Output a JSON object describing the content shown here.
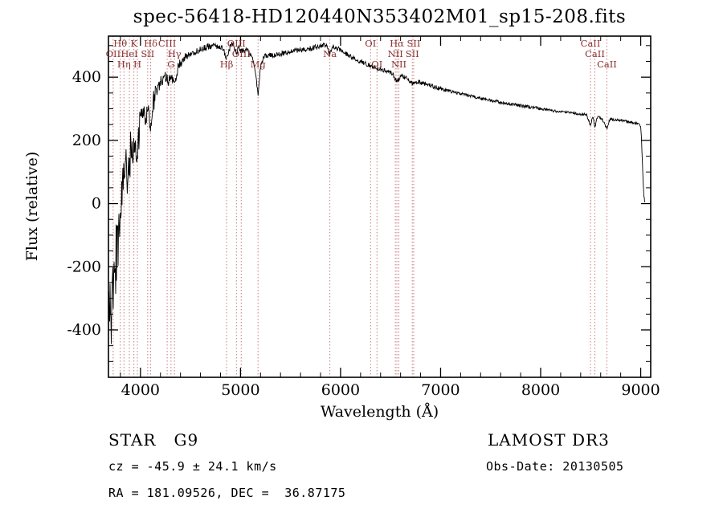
{
  "chart_data": {
    "type": "line",
    "title": "spec-56418-HD120440N353402M01_sp15-208.fits",
    "xlabel": "Wavelength (Å)",
    "ylabel": "Flux (relative)",
    "xlim": [
      3680,
      9100
    ],
    "ylim": [
      -550,
      530
    ],
    "xticks": [
      4000,
      5000,
      6000,
      7000,
      8000,
      9000
    ],
    "yticks": [
      -400,
      -200,
      0,
      200,
      400
    ],
    "x_minor_step": 200,
    "y_minor_step": 50,
    "grid": false,
    "legend": "none",
    "marker_color": "#c97b7b",
    "label_color": "#8b3030",
    "series": [
      {
        "name": "spectrum",
        "color": "#000000",
        "points": [
          [
            3680,
            -420
          ],
          [
            3695,
            -320
          ],
          [
            3710,
            -370
          ],
          [
            3725,
            -250
          ],
          [
            3740,
            -280
          ],
          [
            3755,
            -160
          ],
          [
            3770,
            -120
          ],
          [
            3785,
            -60
          ],
          [
            3800,
            -15
          ],
          [
            3820,
            30
          ],
          [
            3840,
            70
          ],
          [
            3860,
            105
          ],
          [
            3880,
            130
          ],
          [
            3900,
            155
          ],
          [
            3920,
            170
          ],
          [
            3934,
            150
          ],
          [
            3950,
            195
          ],
          [
            3969,
            175
          ],
          [
            3990,
            240
          ],
          [
            4010,
            268
          ],
          [
            4040,
            292
          ],
          [
            4072,
            278
          ],
          [
            4100,
            262
          ],
          [
            4130,
            330
          ],
          [
            4160,
            352
          ],
          [
            4200,
            382
          ],
          [
            4240,
            398
          ],
          [
            4267,
            386
          ],
          [
            4300,
            404
          ],
          [
            4340,
            374
          ],
          [
            4380,
            438
          ],
          [
            4420,
            452
          ],
          [
            4470,
            468
          ],
          [
            4520,
            474
          ],
          [
            4570,
            484
          ],
          [
            4620,
            490
          ],
          [
            4670,
            497
          ],
          [
            4720,
            500
          ],
          [
            4770,
            497
          ],
          [
            4820,
            491
          ],
          [
            4861,
            458
          ],
          [
            4900,
            499
          ],
          [
            4930,
            503
          ],
          [
            4959,
            478
          ],
          [
            4985,
            496
          ],
          [
            5007,
            482
          ],
          [
            5060,
            488
          ],
          [
            5110,
            468
          ],
          [
            5150,
            418
          ],
          [
            5175,
            340
          ],
          [
            5200,
            438
          ],
          [
            5240,
            468
          ],
          [
            5290,
            471
          ],
          [
            5340,
            469
          ],
          [
            5400,
            474
          ],
          [
            5460,
            479
          ],
          [
            5520,
            483
          ],
          [
            5580,
            485
          ],
          [
            5640,
            487
          ],
          [
            5700,
            491
          ],
          [
            5760,
            496
          ],
          [
            5820,
            502
          ],
          [
            5860,
            505
          ],
          [
            5893,
            470
          ],
          [
            5920,
            499
          ],
          [
            5960,
            493
          ],
          [
            6000,
            485
          ],
          [
            6050,
            475
          ],
          [
            6100,
            465
          ],
          [
            6160,
            455
          ],
          [
            6220,
            447
          ],
          [
            6280,
            439
          ],
          [
            6340,
            431
          ],
          [
            6400,
            425
          ],
          [
            6460,
            419
          ],
          [
            6520,
            411
          ],
          [
            6563,
            386
          ],
          [
            6610,
            403
          ],
          [
            6660,
            397
          ],
          [
            6717,
            381
          ],
          [
            6731,
            379
          ],
          [
            6780,
            385
          ],
          [
            6840,
            379
          ],
          [
            6900,
            373
          ],
          [
            6960,
            367
          ],
          [
            7020,
            361
          ],
          [
            7100,
            355
          ],
          [
            7180,
            349
          ],
          [
            7260,
            343
          ],
          [
            7340,
            337
          ],
          [
            7420,
            332
          ],
          [
            7500,
            327
          ],
          [
            7580,
            322
          ],
          [
            7660,
            317
          ],
          [
            7740,
            313
          ],
          [
            7820,
            309
          ],
          [
            7900,
            305
          ],
          [
            7980,
            301
          ],
          [
            8060,
            297
          ],
          [
            8140,
            293
          ],
          [
            8220,
            290
          ],
          [
            8300,
            287
          ],
          [
            8380,
            284
          ],
          [
            8460,
            281
          ],
          [
            8498,
            247
          ],
          [
            8520,
            277
          ],
          [
            8542,
            241
          ],
          [
            8565,
            274
          ],
          [
            8610,
            271
          ],
          [
            8662,
            237
          ],
          [
            8690,
            267
          ],
          [
            8740,
            265
          ],
          [
            8790,
            263
          ],
          [
            8840,
            261
          ],
          [
            8890,
            258
          ],
          [
            8930,
            256
          ],
          [
            8960,
            253
          ],
          [
            8985,
            249
          ],
          [
            9000,
            243
          ],
          [
            9008,
            205
          ],
          [
            9016,
            140
          ],
          [
            9024,
            70
          ],
          [
            9032,
            25
          ],
          [
            9040,
            8
          ]
        ]
      }
    ],
    "noise": [
      {
        "upto": 3780,
        "amp": 120
      },
      {
        "upto": 3900,
        "amp": 85
      },
      {
        "upto": 4000,
        "amp": 55
      },
      {
        "upto": 4150,
        "amp": 38
      },
      {
        "upto": 4300,
        "amp": 24
      },
      {
        "upto": 4500,
        "amp": 15
      },
      {
        "upto": 5000,
        "amp": 10
      },
      {
        "upto": 6000,
        "amp": 8
      },
      {
        "upto": 7000,
        "amp": 7
      },
      {
        "upto": 8000,
        "amp": 5
      },
      {
        "upto": 9100,
        "amp": 4
      }
    ],
    "spectral_lines": [
      {
        "label": "OII",
        "wavelength": 3727,
        "row": 1
      },
      {
        "label": "Hθ",
        "wavelength": 3798,
        "row": 0
      },
      {
        "label": "Hη",
        "wavelength": 3835,
        "row": 2
      },
      {
        "label": "HeI",
        "wavelength": 3889,
        "row": 1
      },
      {
        "label": "K",
        "wavelength": 3934,
        "row": 0
      },
      {
        "label": "H",
        "wavelength": 3969,
        "row": 2
      },
      {
        "label": "SII",
        "wavelength": 4072,
        "row": 1
      },
      {
        "label": "Hδ",
        "wavelength": 4102,
        "row": 0
      },
      {
        "label": "CIII",
        "wavelength": 4267,
        "row": 0
      },
      {
        "label": "G",
        "wavelength": 4305,
        "row": 2
      },
      {
        "label": "Hγ",
        "wavelength": 4340,
        "row": 1
      },
      {
        "label": "Hβ",
        "wavelength": 4861,
        "row": 2
      },
      {
        "label": "OIII",
        "wavelength": 4959,
        "row": 0
      },
      {
        "label": "OIII",
        "wavelength": 5007,
        "row": 1
      },
      {
        "label": "Mg",
        "wavelength": 5175,
        "row": 2
      },
      {
        "label": "Na",
        "wavelength": 5893,
        "row": 1
      },
      {
        "label": "OI",
        "wavelength": 6300,
        "row": 0
      },
      {
        "label": "OI",
        "wavelength": 6364,
        "row": 2
      },
      {
        "label": "NII",
        "wavelength": 6548,
        "row": 1
      },
      {
        "label": "Hα",
        "wavelength": 6563,
        "row": 0
      },
      {
        "label": "NII",
        "wavelength": 6583,
        "row": 2
      },
      {
        "label": "SII",
        "wavelength": 6717,
        "row": 1
      },
      {
        "label": "SII",
        "wavelength": 6731,
        "row": 0
      },
      {
        "label": "CaII",
        "wavelength": 8498,
        "row": 0
      },
      {
        "label": "CaII",
        "wavelength": 8542,
        "row": 1
      },
      {
        "label": "CaII",
        "wavelength": 8662,
        "row": 2
      }
    ]
  },
  "footer": {
    "object_class": "STAR   G9",
    "survey": "LAMOST DR3",
    "cz": "cz = -45.9 ± 24.1 km/s",
    "obs_date": "Obs-Date: 20130505",
    "ra_dec": "RA = 181.09526, DEC =  36.87175"
  }
}
